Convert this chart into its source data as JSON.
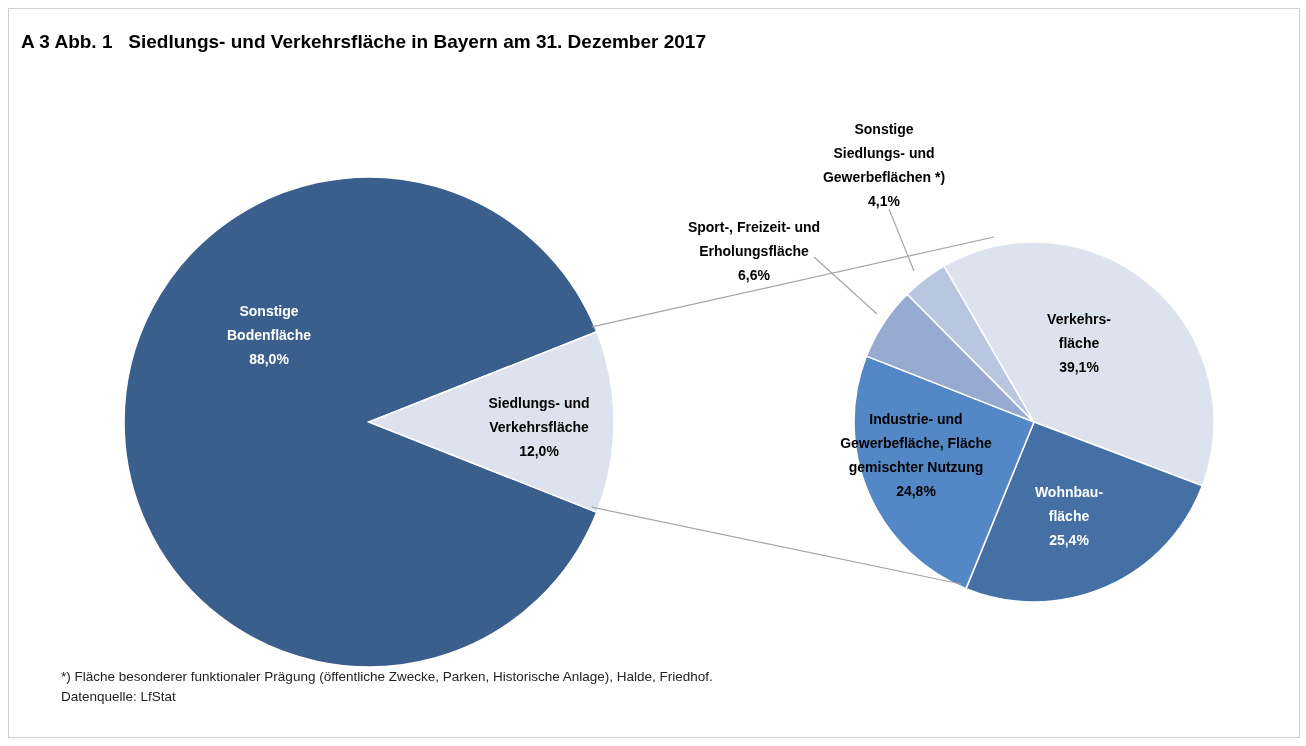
{
  "chart_data": [
    {
      "type": "pie",
      "title": "A 3 Abb. 1   Siedlungs- und Verkehrsfläche in Bayern am 31. Dezember 2017",
      "categories": [
        "Sonstige\nBodenfläche",
        "Siedlungs- und\nVerkehrsfläche"
      ],
      "values": [
        88.0,
        12.0
      ],
      "value_labels": [
        "88,0%",
        "12,0%"
      ],
      "colors": [
        "#3b5f8d",
        "#dde3ee"
      ],
      "annotations": [
        "*) Fläche besonderer funktionaler Prägung (öffentliche Zwecke, Parken, Historische Anlage), Halde, Friedhof.",
        "Datenquelle: LfStat"
      ]
    },
    {
      "type": "pie",
      "categories": [
        "Verkehrs-\nfläche",
        "Wohnbau-\nfläche",
        "Industrie- und\nGewerbefläche, Fläche\ngemischter Nutzung",
        "Sport-, Freizeit- und\nErholungsfläche",
        "Sonstige\nSiedlungs- und\nGewerbeflächen *)"
      ],
      "values": [
        39.1,
        25.4,
        24.8,
        6.6,
        4.1
      ],
      "value_labels": [
        "39,1%",
        "25,4%",
        "24,8%",
        "6,6%",
        "4,1%"
      ],
      "colors": [
        "#dde3ee",
        "#4470a5",
        "#5387c5",
        "#97abd0",
        "#b9c6e0"
      ]
    }
  ]
}
